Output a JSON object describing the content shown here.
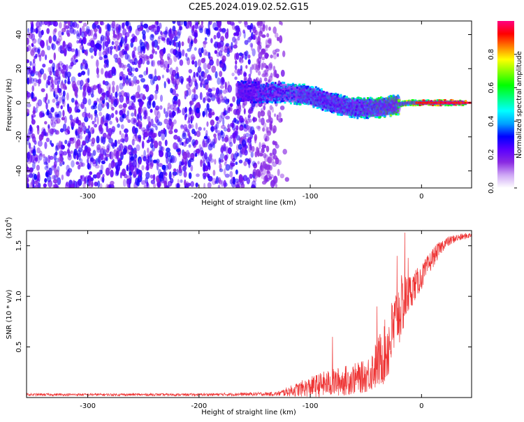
{
  "title": "C2E5.2024.019.02.52.G15",
  "chart_data": [
    {
      "type": "heatmap",
      "xlabel": "Height of straight line (km)",
      "ylabel": "Frequency (Hz)",
      "xlim": [
        -355,
        45
      ],
      "ylim": [
        -50,
        48
      ],
      "x_ticks": [
        -300,
        -200,
        -100,
        0
      ],
      "y_ticks": [
        -40,
        -20,
        0,
        20,
        40
      ],
      "colorbar": {
        "label": "Normalized spectral amplitude",
        "range": [
          0,
          1
        ],
        "ticks": [
          0.0,
          0.2,
          0.4,
          0.6,
          0.8
        ],
        "colors": [
          "#ffffff",
          "#cfa8f5",
          "#8a2be2",
          "#5a00ff",
          "#0000ff",
          "#00a0ff",
          "#00ffff",
          "#00ff80",
          "#00ff00",
          "#80ff00",
          "#ffff00",
          "#ff8000",
          "#ff0000",
          "#ff0080"
        ]
      },
      "noise_region": {
        "x": [
          -355,
          -140
        ],
        "y": [
          -50,
          48
        ],
        "amplitude": [
          0.05,
          0.3
        ]
      },
      "ridge_points": [
        {
          "x": -165,
          "y": 7,
          "amp": 0.35
        },
        {
          "x": -155,
          "y": 6,
          "amp": 0.3
        },
        {
          "x": -140,
          "y": 6,
          "amp": 0.4
        },
        {
          "x": -125,
          "y": 6,
          "amp": 0.45
        },
        {
          "x": -110,
          "y": 5,
          "amp": 0.5
        },
        {
          "x": -100,
          "y": 4,
          "amp": 0.5
        },
        {
          "x": -90,
          "y": 2,
          "amp": 0.45
        },
        {
          "x": -80,
          "y": 0,
          "amp": 0.5
        },
        {
          "x": -70,
          "y": -2,
          "amp": 0.5
        },
        {
          "x": -60,
          "y": -3,
          "amp": 0.5
        },
        {
          "x": -50,
          "y": -3,
          "amp": 0.55
        },
        {
          "x": -40,
          "y": -3,
          "amp": 0.6
        },
        {
          "x": -30,
          "y": -2,
          "amp": 0.65
        },
        {
          "x": -20,
          "y": -1,
          "amp": 0.7
        },
        {
          "x": -10,
          "y": 0,
          "amp": 0.75
        },
        {
          "x": 0,
          "y": 0,
          "amp": 0.85
        },
        {
          "x": 10,
          "y": 0,
          "amp": 0.85
        },
        {
          "x": 20,
          "y": 0,
          "amp": 0.9
        },
        {
          "x": 30,
          "y": 0,
          "amp": 0.9
        },
        {
          "x": 40,
          "y": 0,
          "amp": 0.9
        }
      ]
    },
    {
      "type": "line",
      "xlabel": "Height of straight line (km)",
      "ylabel": "SNR (10 * v/v)",
      "y_scale_label": "(x10",
      "y_scale_exponent": "4",
      "y_scale_suffix": ")",
      "xlim": [
        -355,
        45
      ],
      "ylim": [
        0,
        16500
      ],
      "x_ticks": [
        -300,
        -200,
        -100,
        0
      ],
      "y_ticks": [
        0.5,
        1.0,
        1.5
      ],
      "y_tick_labels": [
        "0.5",
        "1.0",
        "1.5"
      ],
      "series_color": "#ee3333",
      "envelope": [
        {
          "x": -355,
          "base": 250,
          "spread": 250
        },
        {
          "x": -200,
          "base": 250,
          "spread": 250
        },
        {
          "x": -130,
          "base": 300,
          "spread": 400
        },
        {
          "x": -110,
          "base": 600,
          "spread": 1500
        },
        {
          "x": -90,
          "base": 900,
          "spread": 2500
        },
        {
          "x": -70,
          "base": 1200,
          "spread": 3000
        },
        {
          "x": -50,
          "base": 1600,
          "spread": 3200
        },
        {
          "x": -40,
          "base": 2500,
          "spread": 5000
        },
        {
          "x": -30,
          "base": 4000,
          "spread": 7000
        },
        {
          "x": -20,
          "base": 7500,
          "spread": 7000
        },
        {
          "x": -10,
          "base": 10000,
          "spread": 3500
        },
        {
          "x": 0,
          "base": 11500,
          "spread": 2500
        },
        {
          "x": 10,
          "base": 13500,
          "spread": 2000
        },
        {
          "x": 20,
          "base": 15000,
          "spread": 1200
        },
        {
          "x": 30,
          "base": 15600,
          "spread": 800
        },
        {
          "x": 45,
          "base": 16000,
          "spread": 500
        }
      ],
      "spikes": [
        {
          "x": -80,
          "y": 6000
        },
        {
          "x": -40,
          "y": 9000
        },
        {
          "x": -22,
          "y": 14000
        },
        {
          "x": -15,
          "y": 16300
        },
        {
          "x": -12,
          "y": 13800
        }
      ]
    }
  ]
}
